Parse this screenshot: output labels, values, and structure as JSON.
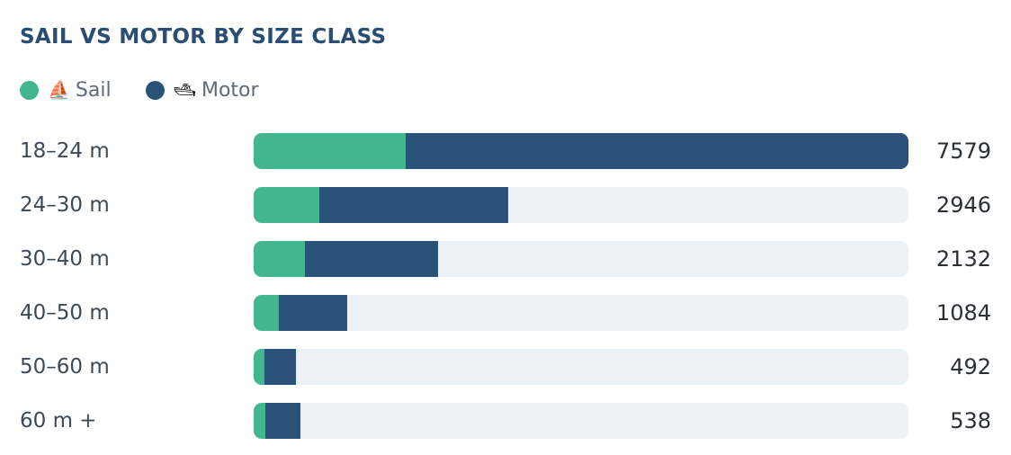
{
  "chart_data": {
    "type": "bar",
    "orientation": "horizontal",
    "stacked": true,
    "title": "SAIL VS MOTOR BY SIZE CLASS",
    "categories": [
      "18–24 m",
      "24–30 m",
      "30–40 m",
      "40–50 m",
      "50–60 m",
      "60 m +"
    ],
    "series": [
      {
        "name": "Sail",
        "icon": "⛵",
        "color": "#41b68f",
        "values": [
          1755,
          761,
          592,
          289,
          127,
          139
        ]
      },
      {
        "name": "Motor",
        "icon": "🛥",
        "color": "#2a5278",
        "values": [
          5824,
          2185,
          1540,
          795,
          365,
          399
        ]
      }
    ],
    "totals": [
      "7579",
      "2946",
      "2132",
      "1084",
      "492",
      "538"
    ],
    "xlim": [
      0,
      7579
    ],
    "legend_position": "top-left",
    "track_color": "#edf1f6"
  }
}
